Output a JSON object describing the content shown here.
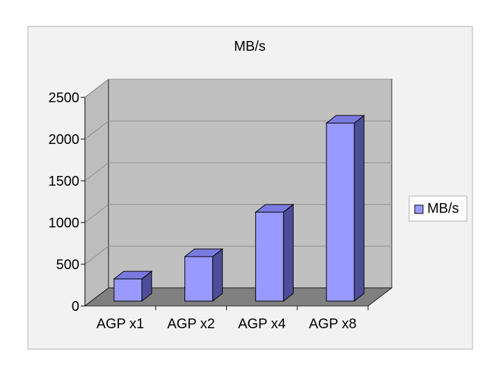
{
  "colors": {
    "frame_bg": "#f2f2f2",
    "frame_border": "#b0b0b0",
    "wall_back": "#c0c0c0",
    "wall_side": "#bdbdbd",
    "floor": "#808080",
    "gridline": "#8c8c8c",
    "bar_front": "#9999ff",
    "bar_top": "#7a7ae0",
    "bar_side": "#4d4d99",
    "bar_outline": "#000000",
    "text": "#000000"
  },
  "chart_data": {
    "type": "bar",
    "title": "MB/s",
    "categories": [
      "AGP x1",
      "AGP x2",
      "AGP x4",
      "AGP x8"
    ],
    "series": [
      {
        "name": "MB/s",
        "values": [
          266,
          533,
          1066,
          2133
        ]
      }
    ],
    "ylim": [
      0,
      2500
    ],
    "yticks": [
      0,
      500,
      1000,
      1500,
      2000,
      2500
    ],
    "grid": true,
    "legend": "right",
    "style": "3d-column"
  }
}
